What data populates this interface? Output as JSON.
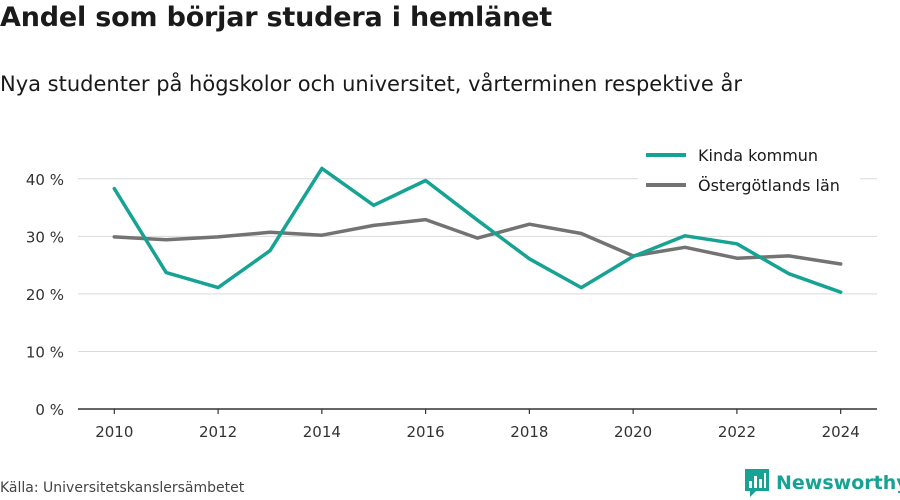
{
  "title": "Andel som börjar studera i hemlänet",
  "subtitle": "Nya studenter på högskolor och universitet, vårterminen respektive år",
  "source": "Källa: Universitetskanslersämbetet",
  "brand": {
    "name": "Newsworthy",
    "icon": "bar-chart-logo-icon",
    "color": "#16a393"
  },
  "chart_data": {
    "type": "line",
    "title": "Andel som börjar studera i hemlänet",
    "xlabel": "",
    "ylabel": "",
    "x": [
      2010,
      2011,
      2012,
      2013,
      2014,
      2015,
      2016,
      2017,
      2018,
      2019,
      2020,
      2021,
      2022,
      2023,
      2024
    ],
    "xlim": [
      2009.3,
      2024.7
    ],
    "ylim": [
      0,
      45
    ],
    "x_ticks": [
      2010,
      2012,
      2014,
      2016,
      2018,
      2020,
      2022,
      2024
    ],
    "y_ticks": [
      0,
      10,
      20,
      30,
      40
    ],
    "y_tick_labels": [
      "0 %",
      "10 %",
      "20 %",
      "30 %",
      "40 %"
    ],
    "grid": true,
    "legend_position": "top-right",
    "series": [
      {
        "name": "Kinda kommun",
        "color": "#16a393",
        "values": [
          38.3,
          23.7,
          21.1,
          27.5,
          41.8,
          35.4,
          39.7,
          32.8,
          26.1,
          21.1,
          26.5,
          30.1,
          28.7,
          23.5,
          20.3
        ]
      },
      {
        "name": "Östergötlands län",
        "color": "#737373",
        "values": [
          29.9,
          29.4,
          29.9,
          30.7,
          30.2,
          31.9,
          32.9,
          29.7,
          32.1,
          30.5,
          26.6,
          28.1,
          26.2,
          26.6,
          25.2
        ]
      }
    ]
  }
}
